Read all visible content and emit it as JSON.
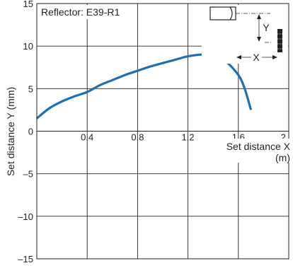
{
  "chart_data": {
    "type": "line",
    "title": "Reflector: E39-R1",
    "xlabel": "Set distance X",
    "xunit": "(m)",
    "ylabel": "Set distance Y (mm)",
    "xlim": [
      0,
      2
    ],
    "ylim": [
      -15,
      15
    ],
    "x_ticks": [
      {
        "value": 0.4,
        "label": "0.4"
      },
      {
        "value": 0.8,
        "label": "0.8"
      },
      {
        "value": 1.2,
        "label": "1.2"
      },
      {
        "value": 1.6,
        "label": "1.6"
      },
      {
        "value": 2.0,
        "label": "2"
      }
    ],
    "y_ticks": [
      {
        "value": 15,
        "label": "15"
      },
      {
        "value": 10,
        "label": "10"
      },
      {
        "value": 5,
        "label": "5"
      },
      {
        "value": 0,
        "label": "0"
      },
      {
        "value": -5,
        "label": "–5"
      },
      {
        "value": -10,
        "label": "–10"
      },
      {
        "value": -15,
        "label": "–15"
      }
    ],
    "grid": true,
    "series": [
      {
        "color": "#1f6fb5",
        "points": [
          [
            0.0,
            1.5
          ],
          [
            0.1,
            2.7
          ],
          [
            0.2,
            3.5
          ],
          [
            0.3,
            4.1
          ],
          [
            0.4,
            4.6
          ],
          [
            0.5,
            5.4
          ],
          [
            0.6,
            6.0
          ],
          [
            0.7,
            6.6
          ],
          [
            0.8,
            7.1
          ],
          [
            0.9,
            7.6
          ],
          [
            1.0,
            8.0
          ],
          [
            1.1,
            8.4
          ],
          [
            1.2,
            8.8
          ],
          [
            1.3,
            9.0
          ],
          [
            1.35,
            9.0
          ],
          [
            1.4,
            8.9
          ],
          [
            1.5,
            8.2
          ],
          [
            1.6,
            6.6
          ],
          [
            1.65,
            5.0
          ],
          [
            1.7,
            2.5
          ]
        ]
      }
    ]
  },
  "diagram": {
    "y_label": "Y",
    "x_label": "X"
  }
}
